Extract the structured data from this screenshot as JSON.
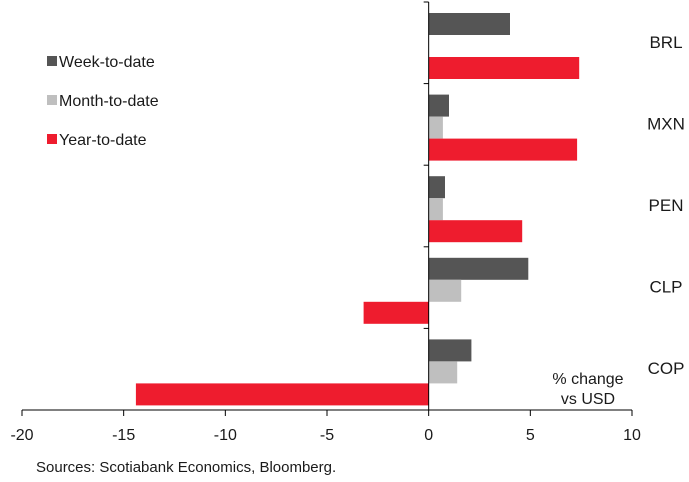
{
  "chart_data": {
    "type": "bar",
    "orientation": "horizontal",
    "categories": [
      "BRL",
      "MXN",
      "PEN",
      "CLP",
      "COP"
    ],
    "series": [
      {
        "name": "Week-to-date",
        "color": "#555555",
        "values": [
          4.0,
          1.0,
          0.8,
          4.9,
          2.1
        ]
      },
      {
        "name": "Month-to-date",
        "color": "#bfbfbf",
        "values": [
          0.0,
          0.7,
          0.7,
          1.6,
          1.4
        ]
      },
      {
        "name": "Year-to-date",
        "color": "#ee1c2e",
        "values": [
          7.4,
          7.3,
          4.6,
          -3.2,
          -14.4
        ]
      }
    ],
    "xlim": [
      -20,
      10
    ],
    "xticks": [
      -20,
      -15,
      -10,
      -5,
      0,
      5,
      10
    ],
    "xtick_labels": [
      "-20",
      "-15",
      "-10",
      "-5",
      "0",
      "5",
      "10"
    ],
    "grid": false,
    "legend_position": "top-left",
    "annotation": [
      "% change",
      "vs USD"
    ]
  },
  "source": "Sources: Scotiabank Economics, Bloomberg."
}
